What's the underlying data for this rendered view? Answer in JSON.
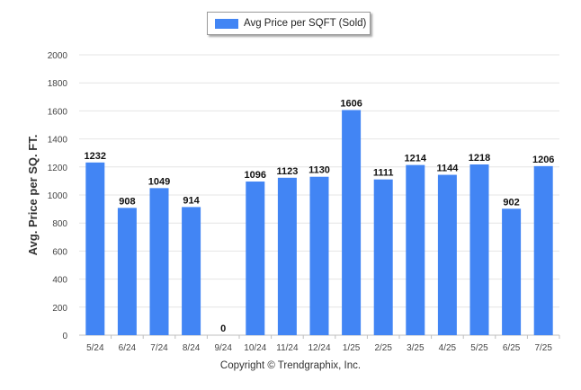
{
  "legend": {
    "label": "Avg Price per SQFT (Sold)",
    "color": "#4285f4"
  },
  "footer": {
    "text": "Copyright © Trendgraphix, Inc."
  },
  "chart_data": {
    "type": "bar",
    "title": "",
    "xlabel": "",
    "ylabel": "Avg. Price per SQ. FT.",
    "ylim": [
      0,
      2000
    ],
    "yticks": [
      0,
      200,
      400,
      600,
      800,
      1000,
      1200,
      1400,
      1600,
      1800,
      2000
    ],
    "grid": true,
    "legend_position": "top",
    "categories": [
      "5/24",
      "6/24",
      "7/24",
      "8/24",
      "9/24",
      "10/24",
      "11/24",
      "12/24",
      "1/25",
      "2/25",
      "3/25",
      "4/25",
      "5/25",
      "6/25",
      "7/25"
    ],
    "series": [
      {
        "name": "Avg Price per SQFT (Sold)",
        "color": "#4285f4",
        "values": [
          1232,
          908,
          1049,
          914,
          0,
          1096,
          1123,
          1130,
          1606,
          1111,
          1214,
          1144,
          1218,
          902,
          1206
        ]
      }
    ]
  }
}
